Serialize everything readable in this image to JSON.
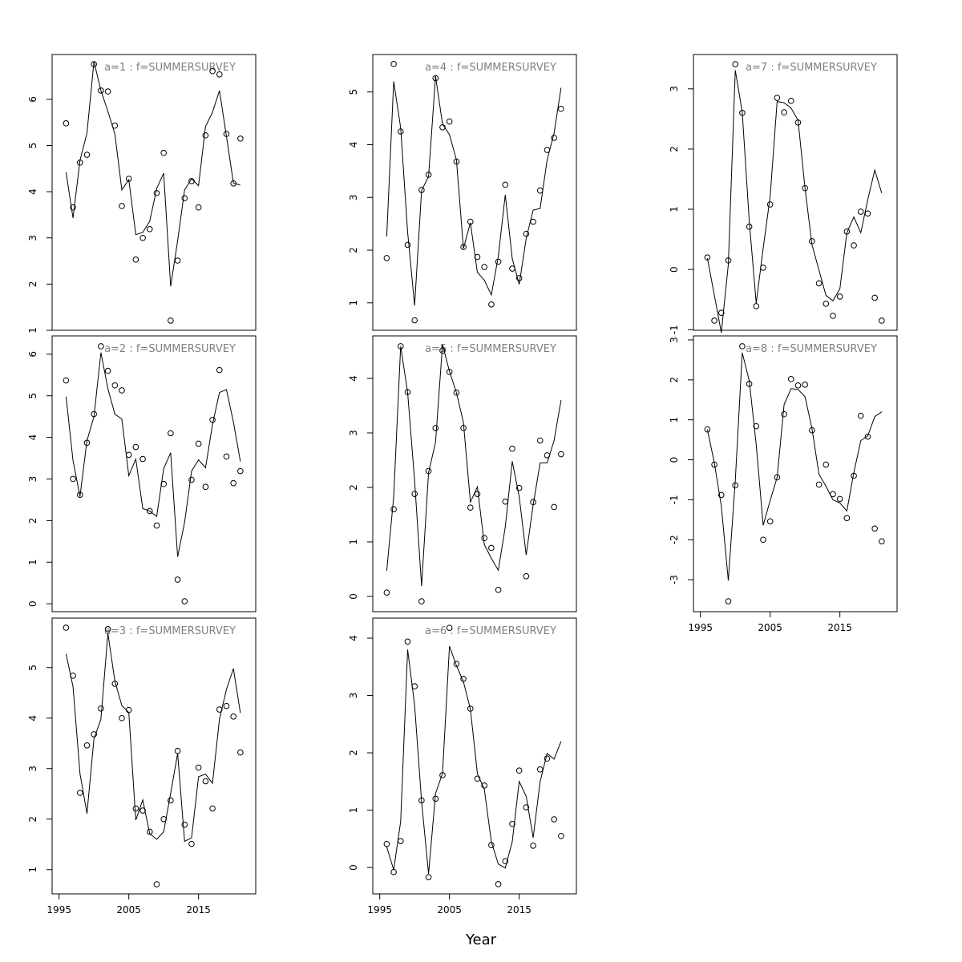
{
  "x_label": "Year",
  "chart_data": [
    {
      "type": "line",
      "title": "a=1  :  f=SUMMERSURVEY",
      "x": [
        1996,
        1997,
        1998,
        1999,
        2000,
        2001,
        2002,
        2003,
        2004,
        2005,
        2006,
        2007,
        2008,
        2009,
        2010,
        2011,
        2012,
        2013,
        2014,
        2015,
        2016,
        2017,
        2018,
        2019,
        2020,
        2021
      ],
      "xlim": [
        1994,
        2023.2
      ],
      "ylim": [
        1.0,
        6.97
      ],
      "yticks": [
        1,
        2,
        3,
        4,
        5,
        6
      ],
      "series": [
        {
          "kind": "points",
          "color": "#000000",
          "values": [
            5.48,
            3.66,
            4.63,
            4.8,
            6.76,
            6.19,
            6.17,
            5.43,
            3.69,
            4.28,
            2.53,
            3.0,
            3.19,
            3.97,
            4.84,
            1.21,
            2.51,
            3.86,
            4.23,
            3.66,
            5.22,
            6.61,
            6.54,
            5.25,
            4.18,
            5.15
          ]
        },
        {
          "kind": "line",
          "color": "#000000",
          "values": [
            4.42,
            3.43,
            4.68,
            5.27,
            6.82,
            6.19,
            5.74,
            5.25,
            4.04,
            4.26,
            3.07,
            3.12,
            3.36,
            4.07,
            4.4,
            1.95,
            2.94,
            4.04,
            4.28,
            4.13,
            5.41,
            5.72,
            6.19,
            5.2,
            4.19,
            4.14
          ]
        }
      ]
    },
    {
      "type": "line",
      "title": "a=2  :  f=SUMMERSURVEY",
      "x": [
        1996,
        1997,
        1998,
        1999,
        2000,
        2001,
        2002,
        2003,
        2004,
        2005,
        2006,
        2007,
        2008,
        2009,
        2010,
        2011,
        2012,
        2013,
        2014,
        2015,
        2016,
        2017,
        2018,
        2019,
        2020,
        2021
      ],
      "xlim": [
        1994,
        2023.2
      ],
      "ylim": [
        -0.19,
        6.44
      ],
      "yticks": [
        0,
        1,
        2,
        3,
        4,
        5,
        6
      ],
      "series": [
        {
          "kind": "points",
          "color": "#000000",
          "values": [
            5.37,
            3.0,
            2.62,
            3.87,
            4.56,
            6.19,
            5.6,
            5.25,
            5.13,
            3.58,
            3.77,
            3.48,
            2.23,
            1.88,
            2.88,
            4.1,
            0.58,
            0.06,
            2.98,
            3.85,
            2.81,
            4.42,
            5.62,
            3.54,
            2.9,
            3.19
          ]
        },
        {
          "kind": "line",
          "color": "#000000",
          "values": [
            4.98,
            3.44,
            2.58,
            3.92,
            4.5,
            6.04,
            5.17,
            4.56,
            4.44,
            3.08,
            3.48,
            2.29,
            2.23,
            2.1,
            3.25,
            3.63,
            1.13,
            1.96,
            3.19,
            3.46,
            3.27,
            4.31,
            5.08,
            5.15,
            4.37,
            3.42
          ]
        }
      ]
    },
    {
      "type": "line",
      "title": "a=3  :  f=SUMMERSURVEY",
      "x": [
        1996,
        1997,
        1998,
        1999,
        2000,
        2001,
        2002,
        2003,
        2004,
        2005,
        2006,
        2007,
        2008,
        2009,
        2010,
        2011,
        2012,
        2013,
        2014,
        2015,
        2016,
        2017,
        2018,
        2019,
        2020,
        2021
      ],
      "xlim": [
        1994,
        2023.2
      ],
      "ylim": [
        0.52,
        5.98
      ],
      "yticks": [
        1,
        2,
        3,
        4,
        5
      ],
      "xticks": [
        1995,
        2005,
        2015
      ],
      "series": [
        {
          "kind": "points",
          "color": "#000000",
          "values": [
            5.79,
            4.84,
            2.52,
            3.46,
            3.68,
            4.19,
            5.76,
            4.68,
            4.0,
            4.16,
            2.21,
            2.17,
            1.75,
            0.71,
            2.0,
            2.37,
            3.35,
            1.89,
            1.51,
            3.02,
            2.75,
            2.21,
            4.17,
            4.24,
            4.03,
            3.32
          ]
        },
        {
          "kind": "line",
          "color": "#000000",
          "values": [
            5.27,
            4.62,
            2.9,
            2.11,
            3.59,
            3.98,
            5.68,
            4.73,
            4.25,
            4.11,
            1.98,
            2.38,
            1.71,
            1.6,
            1.75,
            2.51,
            3.3,
            1.56,
            1.63,
            2.84,
            2.89,
            2.71,
            3.98,
            4.57,
            4.98,
            4.1
          ]
        }
      ]
    },
    {
      "type": "line",
      "title": "a=4  :  f=SUMMERSURVEY",
      "x": [
        1996,
        1997,
        1998,
        1999,
        2000,
        2001,
        2002,
        2003,
        2004,
        2005,
        2006,
        2007,
        2008,
        2009,
        2010,
        2011,
        2012,
        2013,
        2014,
        2015,
        2016,
        2017,
        2018,
        2019,
        2020,
        2021
      ],
      "xlim": [
        1994,
        2023.2
      ],
      "ylim": [
        0.48,
        5.71
      ],
      "yticks": [
        1,
        2,
        3,
        4,
        5
      ],
      "series": [
        {
          "kind": "points",
          "color": "#000000",
          "values": [
            1.85,
            5.53,
            4.25,
            2.1,
            0.67,
            3.14,
            3.43,
            5.26,
            4.33,
            4.44,
            3.68,
            2.06,
            2.54,
            1.87,
            1.68,
            0.97,
            1.78,
            3.24,
            1.65,
            1.47,
            2.31,
            2.54,
            3.13,
            3.9,
            4.13,
            4.68
          ]
        },
        {
          "kind": "line",
          "color": "#000000",
          "values": [
            2.26,
            5.2,
            4.32,
            2.34,
            0.95,
            3.13,
            3.4,
            5.3,
            4.39,
            4.19,
            3.71,
            2.03,
            2.52,
            1.58,
            1.43,
            1.15,
            1.88,
            3.05,
            1.84,
            1.35,
            2.22,
            2.76,
            2.79,
            3.71,
            4.22,
            5.08
          ]
        }
      ]
    },
    {
      "type": "line",
      "title": "a=5  :  f=SUMMERSURVEY",
      "x": [
        1996,
        1997,
        1998,
        1999,
        2000,
        2001,
        2002,
        2003,
        2004,
        2005,
        2006,
        2007,
        2008,
        2009,
        2010,
        2011,
        2012,
        2013,
        2014,
        2015,
        2016,
        2017,
        2018,
        2019,
        2020,
        2021
      ],
      "xlim": [
        1994,
        2023.2
      ],
      "ylim": [
        -0.28,
        4.78
      ],
      "yticks": [
        0,
        1,
        2,
        3,
        4
      ],
      "series": [
        {
          "kind": "points",
          "color": "#000000",
          "values": [
            0.07,
            1.6,
            4.59,
            3.75,
            1.88,
            -0.09,
            2.3,
            3.09,
            4.51,
            4.12,
            3.74,
            3.09,
            1.63,
            1.88,
            1.07,
            0.89,
            0.12,
            1.74,
            2.71,
            1.99,
            0.37,
            1.73,
            2.86,
            2.59,
            1.64,
            2.61
          ]
        },
        {
          "kind": "line",
          "color": "#000000",
          "values": [
            0.47,
            1.83,
            4.59,
            3.74,
            2.12,
            0.19,
            2.27,
            2.83,
            4.62,
            4.13,
            3.74,
            3.19,
            1.73,
            2.01,
            0.95,
            0.7,
            0.48,
            1.27,
            2.48,
            1.83,
            0.76,
            1.68,
            2.45,
            2.45,
            2.86,
            3.6
          ]
        }
      ]
    },
    {
      "type": "line",
      "title": "a=6  :  f=SUMMERSURVEY",
      "x": [
        1996,
        1997,
        1998,
        1999,
        2000,
        2001,
        2002,
        2003,
        2004,
        2005,
        2006,
        2007,
        2008,
        2009,
        2010,
        2011,
        2012,
        2013,
        2014,
        2015,
        2016,
        2017,
        2018,
        2019,
        2020,
        2021
      ],
      "xlim": [
        1994,
        2023.2
      ],
      "ylim": [
        -0.46,
        4.35
      ],
      "yticks": [
        0,
        1,
        2,
        3,
        4
      ],
      "xticks": [
        1995,
        2005,
        2015
      ],
      "series": [
        {
          "kind": "points",
          "color": "#000000",
          "values": [
            0.41,
            -0.08,
            0.46,
            3.94,
            3.16,
            1.17,
            -0.17,
            1.2,
            1.61,
            4.18,
            3.55,
            3.29,
            2.77,
            1.55,
            1.43,
            0.39,
            -0.29,
            0.11,
            0.76,
            1.69,
            1.05,
            0.38,
            1.71,
            1.9,
            0.84,
            0.55
          ]
        },
        {
          "kind": "line",
          "color": "#000000",
          "values": [
            0.36,
            -0.04,
            0.8,
            3.8,
            2.83,
            1.15,
            -0.11,
            1.29,
            1.64,
            3.86,
            3.52,
            3.24,
            2.76,
            1.64,
            1.36,
            0.45,
            0.06,
            -0.01,
            0.45,
            1.5,
            1.24,
            0.52,
            1.5,
            1.99,
            1.89,
            2.2
          ]
        }
      ]
    },
    {
      "type": "line",
      "title": "a=7  :  f=SUMMERSURVEY",
      "x": [
        1996,
        1997,
        1998,
        1999,
        2000,
        2001,
        2002,
        2003,
        2004,
        2005,
        2006,
        2007,
        2008,
        2009,
        2010,
        2011,
        2012,
        2013,
        2014,
        2015,
        2016,
        2017,
        2018,
        2019,
        2020,
        2021
      ],
      "xlim": [
        1994,
        2023.2
      ],
      "ylim": [
        -1.01,
        3.57
      ],
      "yticks": [
        -1,
        0,
        1,
        2,
        3
      ],
      "series": [
        {
          "kind": "points",
          "color": "#000000",
          "values": [
            0.2,
            -0.85,
            -0.72,
            0.15,
            3.41,
            2.6,
            0.71,
            -0.61,
            0.03,
            1.08,
            2.85,
            2.61,
            2.8,
            2.44,
            1.35,
            0.47,
            -0.23,
            -0.57,
            -0.77,
            -0.45,
            0.63,
            0.4,
            0.96,
            0.93,
            -0.47,
            -0.85
          ]
        },
        {
          "kind": "line",
          "color": "#000000",
          "values": [
            0.19,
            -0.43,
            -1.05,
            0.08,
            3.31,
            2.61,
            0.81,
            -0.56,
            0.35,
            1.21,
            2.79,
            2.77,
            2.68,
            2.48,
            1.35,
            0.41,
            -0.01,
            -0.43,
            -0.52,
            -0.32,
            0.61,
            0.87,
            0.61,
            1.16,
            1.65,
            1.27
          ]
        }
      ]
    },
    {
      "type": "line",
      "title": "a=8  :  f=SUMMERSURVEY",
      "x": [
        1996,
        1997,
        1998,
        1999,
        2000,
        2001,
        2002,
        2003,
        2004,
        2005,
        2006,
        2007,
        2008,
        2009,
        2010,
        2011,
        2012,
        2013,
        2014,
        2015,
        2016,
        2017,
        2018,
        2019,
        2020,
        2021
      ],
      "xlim": [
        1994,
        2023.2
      ],
      "ylim": [
        -3.8,
        3.1
      ],
      "yticks": [
        -3,
        -2,
        -1,
        0,
        1,
        2,
        3
      ],
      "xticks": [
        1995,
        2005,
        2015
      ],
      "series": [
        {
          "kind": "points",
          "color": "#000000",
          "values": [
            0.76,
            -0.12,
            -0.88,
            -3.54,
            -0.64,
            2.84,
            1.9,
            0.84,
            -2.0,
            -1.54,
            -0.44,
            1.14,
            2.02,
            1.86,
            1.88,
            0.74,
            -0.62,
            -0.12,
            -0.86,
            -0.98,
            -1.46,
            -0.4,
            1.1,
            0.58,
            -1.72,
            -2.04
          ]
        },
        {
          "kind": "line",
          "color": "#000000",
          "values": [
            0.76,
            -0.08,
            -1.16,
            -3.02,
            -0.52,
            2.68,
            1.98,
            0.38,
            -1.64,
            -1.02,
            -0.44,
            1.38,
            1.78,
            1.76,
            1.58,
            0.78,
            -0.36,
            -0.66,
            -1.0,
            -1.08,
            -1.28,
            -0.32,
            0.48,
            0.6,
            1.08,
            1.2
          ]
        }
      ]
    }
  ]
}
